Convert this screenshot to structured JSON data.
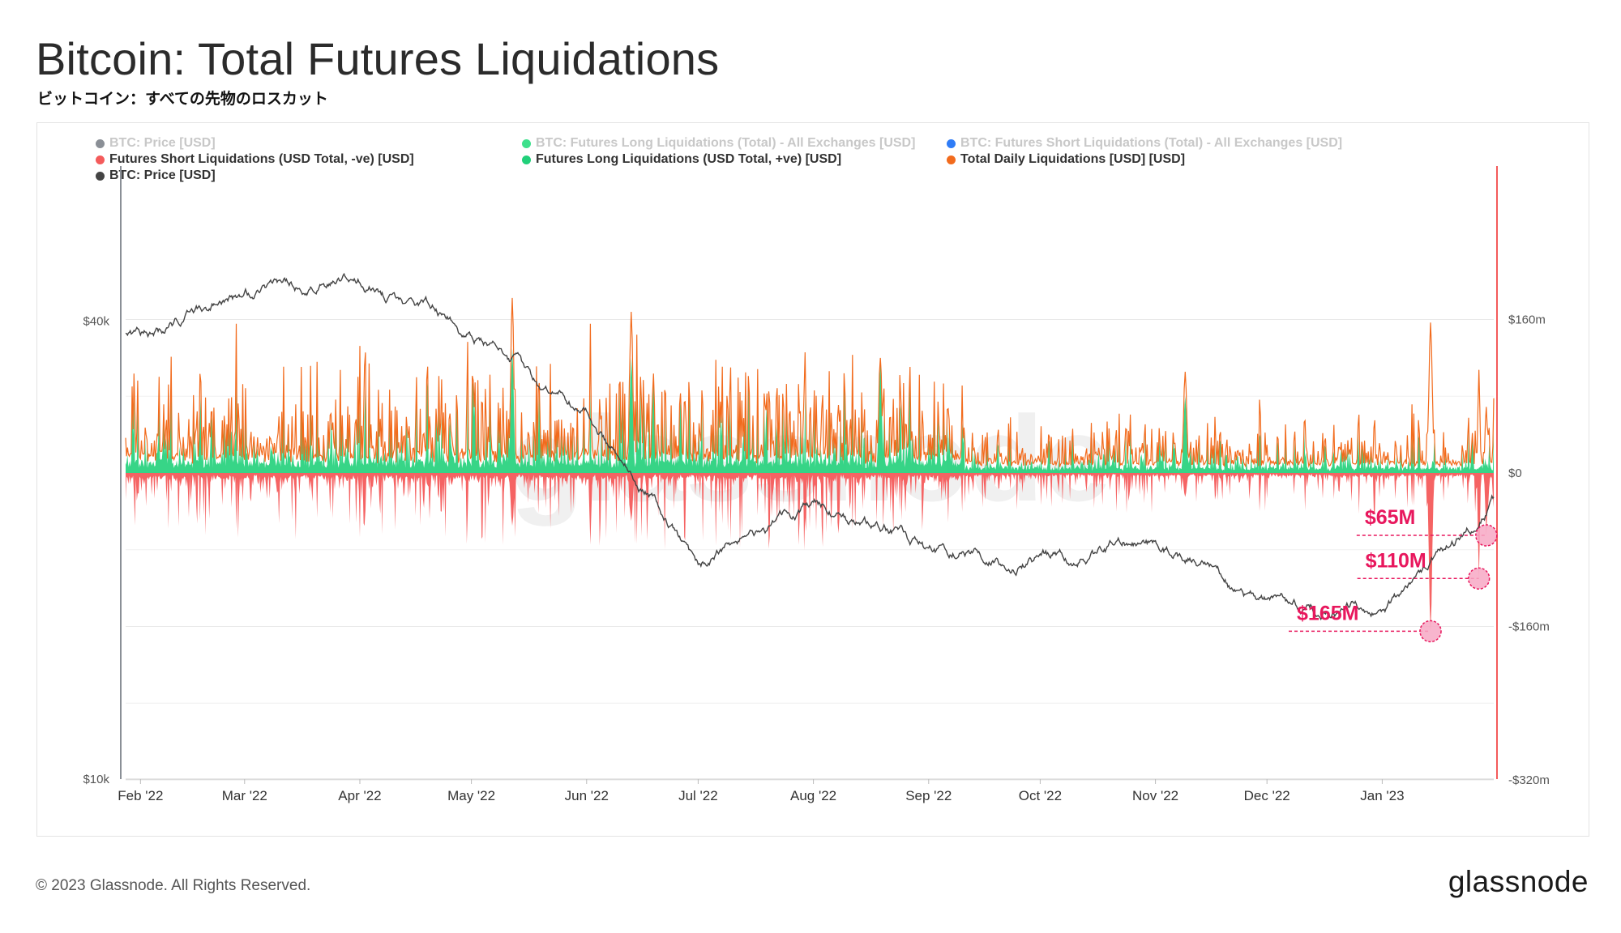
{
  "title": "Bitcoin: Total Futures Liquidations",
  "subtitle": "ビットコイン：すべての先物のロスカット",
  "legend": [
    {
      "label": "BTC: Price [USD]",
      "color": "#8a8f96",
      "faded": true
    },
    {
      "label": "BTC: Futures Long Liquidations (Total) - All Exchanges [USD]",
      "color": "#3ee08c",
      "faded": true
    },
    {
      "label": "BTC: Futures Short Liquidations (Total) - All Exchanges [USD]",
      "color": "#2f7cf6",
      "faded": true
    },
    {
      "label": "Futures Short Liquidations (USD Total, -ve) [USD]",
      "color": "#f45b5b",
      "faded": false
    },
    {
      "label": "Futures Long Liquidations (USD Total, +ve) [USD]",
      "color": "#21d07a",
      "faded": false
    },
    {
      "label": "Total Daily Liquidations [USD] [USD]",
      "color": "#f26b1d",
      "faded": false
    },
    {
      "label": "BTC: Price [USD]",
      "color": "#444444",
      "faded": false
    }
  ],
  "watermark": "glassnode",
  "copyright": "© 2023 Glassnode. All Rights Reserved.",
  "brand": "glassnode",
  "colors": {
    "short": "#f45b5b",
    "long": "#21d07a",
    "total": "#f26b1d",
    "price": "#444444",
    "annotation": "#e8175d",
    "axis_right": "#f45b5b"
  },
  "chart_data": {
    "type": "area",
    "x_range": [
      "2022-01-28",
      "2023-01-31"
    ],
    "x_ticks": [
      "Feb '22",
      "Mar '22",
      "Apr '22",
      "May '22",
      "Jun '22",
      "Jul '22",
      "Aug '22",
      "Sep '22",
      "Oct '22",
      "Nov '22",
      "Dec '22",
      "Jan '23"
    ],
    "y_left": {
      "scale": "log",
      "range": [
        10000,
        64000
      ],
      "ticks": [
        {
          "value": 40000,
          "label": "$40k"
        },
        {
          "value": 10000,
          "label": "$10k"
        }
      ]
    },
    "y_right": {
      "range": [
        -320000000,
        320000000
      ],
      "ticks": [
        {
          "value": 160000000,
          "label": "$160m"
        },
        {
          "value": 0,
          "label": "$0"
        },
        {
          "value": -160000000,
          "label": "-$160m"
        },
        {
          "value": -320000000,
          "label": "-$320m"
        }
      ]
    },
    "price_series_month_start": [
      {
        "date": "2022-02-01",
        "price": 38500
      },
      {
        "date": "2022-03-01",
        "price": 43500
      },
      {
        "date": "2022-04-01",
        "price": 45500
      },
      {
        "date": "2022-05-01",
        "price": 38500
      },
      {
        "date": "2022-06-01",
        "price": 30000
      },
      {
        "date": "2022-07-01",
        "price": 19500
      },
      {
        "date": "2022-08-01",
        "price": 23000
      },
      {
        "date": "2022-09-01",
        "price": 20000
      },
      {
        "date": "2022-10-01",
        "price": 19300
      },
      {
        "date": "2022-11-01",
        "price": 20500
      },
      {
        "date": "2022-12-01",
        "price": 17000
      },
      {
        "date": "2023-01-01",
        "price": 16600
      },
      {
        "date": "2023-01-31",
        "price": 23100
      }
    ],
    "major_spikes": [
      {
        "date": "2022-05-12",
        "total": 180000000,
        "long": 130000000,
        "short": -55000000
      },
      {
        "date": "2022-06-13",
        "total": 150000000,
        "long": 120000000,
        "short": -50000000
      },
      {
        "date": "2022-08-19",
        "total": 120000000,
        "long": 115000000
      },
      {
        "date": "2022-11-09",
        "total": 90000000,
        "long": 80000000,
        "short": -25000000
      },
      {
        "date": "2023-01-14",
        "total": 145000000,
        "short": -165000000
      }
    ],
    "annotations": [
      {
        "label": "$65M",
        "value": -65000000,
        "date": "2023-01-29"
      },
      {
        "label": "$110M",
        "value": -110000000,
        "date": "2023-01-27"
      },
      {
        "label": "$165M",
        "value": -165000000,
        "date": "2023-01-14"
      }
    ]
  }
}
